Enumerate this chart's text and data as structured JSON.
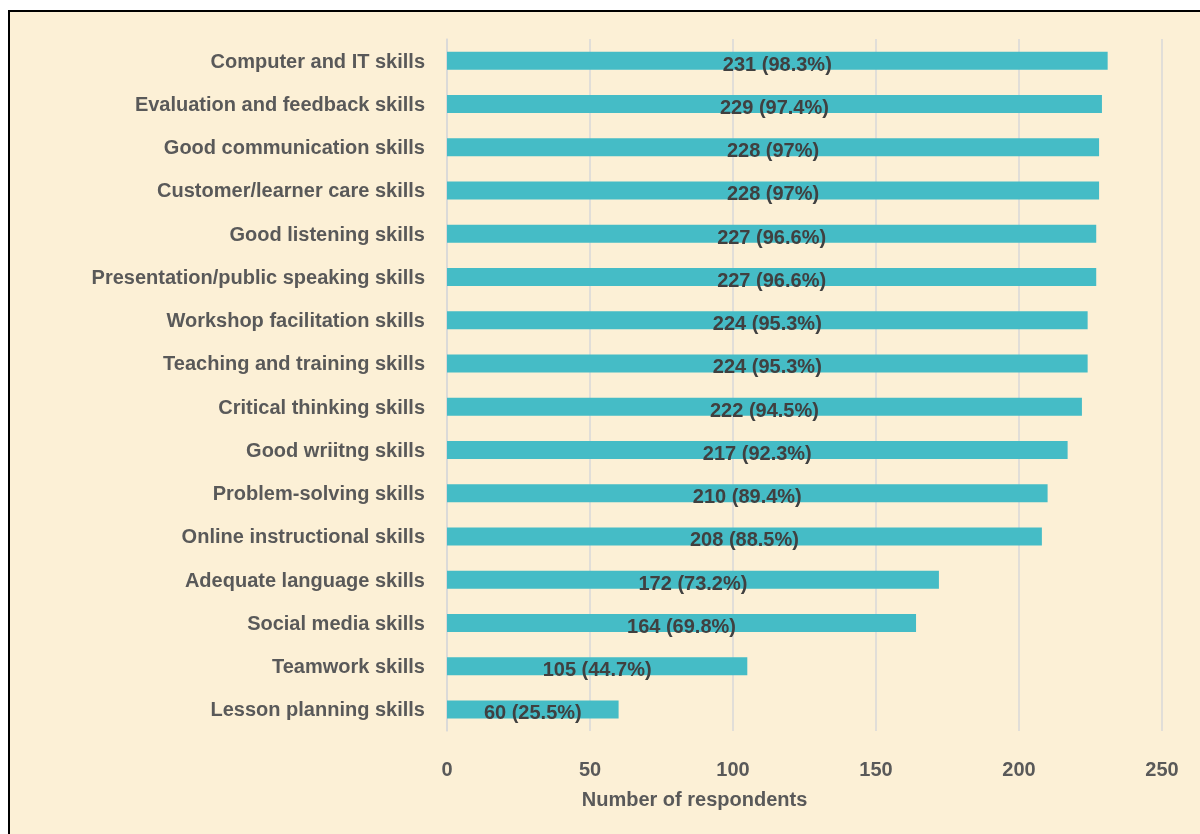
{
  "chart_data": {
    "type": "bar",
    "orientation": "horizontal",
    "xlabel": "Number of respondents",
    "categories": [
      "Computer and IT skills",
      "Evaluation and feedback skills",
      "Good communication skills",
      "Customer/learner care skills",
      "Good listening skills",
      "Presentation/public speaking skills",
      "Workshop facilitation skills",
      "Teaching and training skills",
      "Critical thinking skills",
      "Good wriitng skills",
      "Problem-solving skills",
      "Online instructional skills",
      "Adequate language skills",
      "Social media skills",
      "Teamwork skills",
      "Lesson planning skills"
    ],
    "values": [
      231,
      229,
      228,
      228,
      227,
      227,
      224,
      224,
      222,
      217,
      210,
      208,
      172,
      164,
      105,
      60
    ],
    "value_labels": [
      "231 (98.3%)",
      "229 (97.4%)",
      "228 (97%)",
      "228 (97%)",
      "227 (96.6%)",
      "227 (96.6%)",
      "224 (95.3%)",
      "224 (95.3%)",
      "222 (94.5%)",
      "217 (92.3%)",
      "210 (89.4%)",
      "208 (88.5%)",
      "172 (73.2%)",
      "164 (69.8%)",
      "105 (44.7%)",
      "60 (25.5%)"
    ],
    "color": "#45bcc6",
    "xlim": [
      0,
      250
    ],
    "xticks": [
      0,
      50,
      100,
      150,
      200,
      250
    ],
    "grid": "x"
  }
}
